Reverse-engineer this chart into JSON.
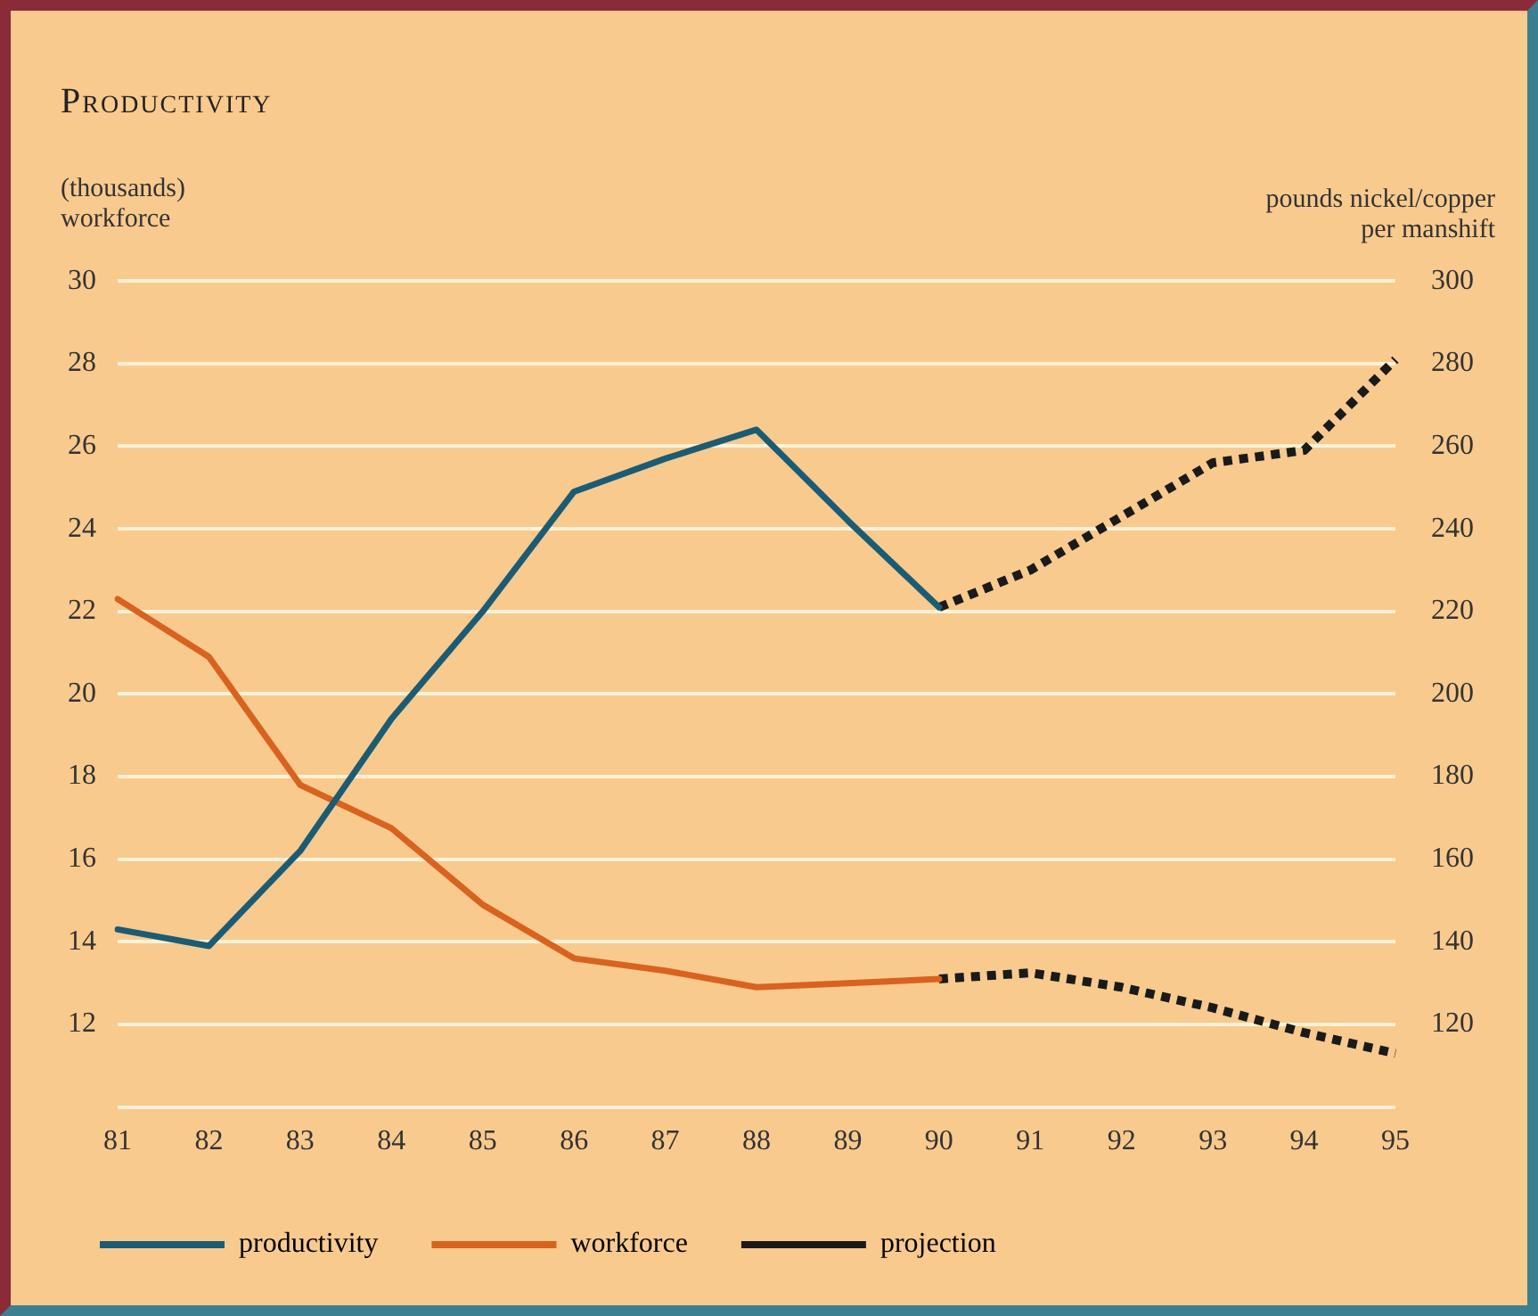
{
  "chart_data": {
    "type": "line",
    "title": "Productivity",
    "ylabel": "(thousands) workforce",
    "y2label": "pounds nickel/copper per manshift",
    "categories": [
      "81",
      "82",
      "83",
      "84",
      "85",
      "86",
      "87",
      "88",
      "89",
      "90",
      "91",
      "92",
      "93",
      "94",
      "95"
    ],
    "series": [
      {
        "name": "productivity",
        "color": "#1b5c74",
        "axis": "y2",
        "line_style": "solid",
        "values": [
          143,
          139,
          162,
          194,
          220,
          249,
          257,
          264,
          242,
          221,
          null,
          null,
          null,
          null,
          null
        ]
      },
      {
        "name": "workforce",
        "color": "#d9621f",
        "axis": "y",
        "line_style": "solid",
        "values": [
          22.3,
          20.9,
          17.8,
          16.75,
          14.9,
          13.6,
          13.3,
          12.9,
          13.0,
          13.1,
          null,
          null,
          null,
          null,
          null
        ]
      },
      {
        "name": "projection",
        "color": "#1a1a1a",
        "axis": "y2",
        "line_style": "dotted",
        "values": [
          null,
          null,
          null,
          null,
          null,
          null,
          null,
          null,
          null,
          221,
          230,
          243,
          256,
          259,
          281
        ]
      },
      {
        "color": "#1a1a1a",
        "axis": "y",
        "line_style": "dotted",
        "values": [
          null,
          null,
          null,
          null,
          null,
          null,
          null,
          null,
          null,
          13.1,
          13.25,
          12.9,
          12.4,
          11.8,
          11.3
        ]
      }
    ],
    "ylim": [
      10,
      30
    ],
    "yticks": [
      {
        "value": 10,
        "label": null
      },
      12,
      14,
      16,
      18,
      20,
      22,
      24,
      26,
      28,
      30
    ],
    "y2lim": [
      100,
      300
    ],
    "y2ticks": [
      120,
      140,
      160,
      180,
      200,
      220,
      240,
      260,
      280,
      300
    ],
    "grid": "y",
    "legend": "bottom",
    "marker": "none"
  }
}
